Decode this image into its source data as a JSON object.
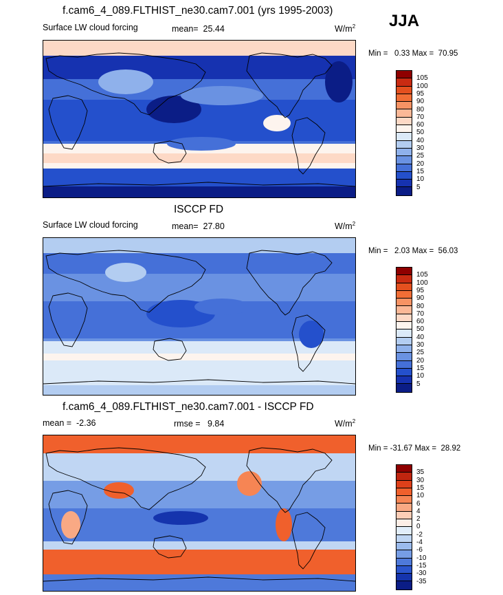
{
  "season": "JJA",
  "chart_data": [
    {
      "type": "heatmap",
      "title": "f.cam6_4_089.FLTHIST_ne30.cam7.001 (yrs 1995-2003)",
      "left_label": "Surface LW cloud forcing",
      "mean_label": "mean=",
      "mean_value": "25.44",
      "units": "W/m",
      "units_exp": "2",
      "min_label": "Min =",
      "min_value": "0.33",
      "max_label": "Max =",
      "max_value": "70.95",
      "levels": [
        "105",
        "100",
        "95",
        "90",
        "80",
        "70",
        "60",
        "50",
        "40",
        "30",
        "25",
        "20",
        "15",
        "10",
        "5"
      ],
      "colors": [
        "#8f0000",
        "#c92b12",
        "#e4501f",
        "#f16e36",
        "#f79364",
        "#fbb897",
        "#fdd9c6",
        "#fdf4ee",
        "#dbe9f8",
        "#b3cdf1",
        "#8fb1eb",
        "#6a92e2",
        "#4570d8",
        "#2450cc",
        "#1632b0",
        "#0b1d86"
      ],
      "map_style": "model"
    },
    {
      "type": "heatmap",
      "title": "ISCCP FD",
      "left_label": "Surface LW cloud forcing",
      "mean_label": "mean=",
      "mean_value": "27.80",
      "units": "W/m",
      "units_exp": "2",
      "min_label": "Min =",
      "min_value": "2.03",
      "max_label": "Max =",
      "max_value": "56.03",
      "levels": [
        "105",
        "100",
        "95",
        "90",
        "80",
        "70",
        "60",
        "50",
        "40",
        "30",
        "25",
        "20",
        "15",
        "10",
        "5"
      ],
      "colors": [
        "#8f0000",
        "#c92b12",
        "#e4501f",
        "#f16e36",
        "#f79364",
        "#fbb897",
        "#fdd9c6",
        "#fdf4ee",
        "#dbe9f8",
        "#b3cdf1",
        "#8fb1eb",
        "#6a92e2",
        "#4570d8",
        "#2450cc",
        "#1632b0",
        "#0b1d86"
      ],
      "map_style": "obs"
    },
    {
      "type": "heatmap",
      "title": "f.cam6_4_089.FLTHIST_ne30.cam7.001 - ISCCP FD",
      "left_label": "mean =",
      "left_value": "-2.36",
      "mean_label": "rmse =",
      "mean_value": "9.84",
      "units": "W/m",
      "units_exp": "2",
      "min_label": "Min =",
      "min_value": "-31.67",
      "max_label": "Max =",
      "max_value": "28.92",
      "levels": [
        "35",
        "30",
        "15",
        "10",
        "6",
        "4",
        "2",
        "0",
        "-2",
        "-4",
        "-6",
        "-10",
        "-15",
        "-30",
        "-35"
      ],
      "colors": [
        "#8f0000",
        "#c0250f",
        "#df401a",
        "#f0602c",
        "#f68554",
        "#f9a984",
        "#fccdb6",
        "#fdeee6",
        "#e2eefa",
        "#c0d6f3",
        "#9bbbed",
        "#769de5",
        "#4e79da",
        "#2b55cd",
        "#1534ad",
        "#0b1d86"
      ],
      "map_style": "diff"
    }
  ]
}
